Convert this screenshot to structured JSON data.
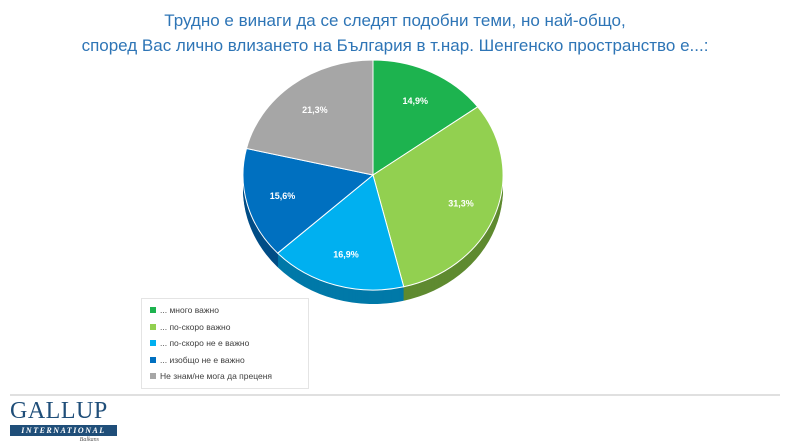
{
  "chart_data": {
    "type": "pie",
    "title_line1": "Трудно е винаги да се следят подобни теми, но най-общо,",
    "title_line2": "според Вас лично влизането на България в т.нар. Шенгенско пространство е...:",
    "categories": [
      "... много важно",
      "... по-скоро важно",
      "... по-скоро не е важно",
      "... изобщо не е важно",
      "Не знам/не мога да преценя"
    ],
    "values": [
      14.9,
      31.3,
      16.9,
      15.6,
      21.3
    ],
    "labels": [
      "14,9%",
      "31,3%",
      "16,9%",
      "15,6%",
      "21,3%"
    ],
    "colors": [
      "#1db34f",
      "#92d050",
      "#00b0f0",
      "#0070c0",
      "#a6a6a6"
    ],
    "side_colors": [
      "#137a36",
      "#5f8a30",
      "#0079a8",
      "#004d86",
      "#737373"
    ],
    "legend_placement": "bottom-left"
  },
  "logo": {
    "name": "GALLUP",
    "sub": "INTERNATIONAL",
    "region": "Balkans"
  }
}
